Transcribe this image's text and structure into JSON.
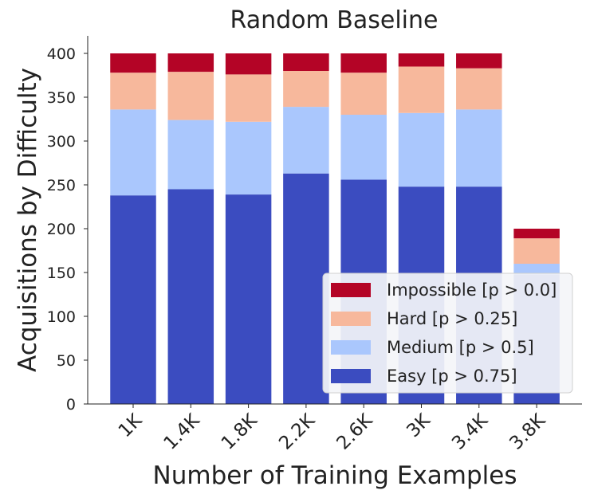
{
  "chart_data": {
    "type": "bar",
    "stacked": true,
    "title": "Random Baseline",
    "xlabel": "Number of Training Examples",
    "ylabel": "Acquisitions by Difficulty",
    "categories": [
      "1K",
      "1.4K",
      "1.8K",
      "2.2K",
      "2.6K",
      "3K",
      "3.4K",
      "3.8K"
    ],
    "ylim": [
      0,
      420
    ],
    "yticks": [
      0,
      50,
      100,
      150,
      200,
      250,
      300,
      350,
      400
    ],
    "legend_position": "lower-right",
    "grid": false,
    "series": [
      {
        "name": "Easy [p > 0.75]",
        "color": "#3b4cc0",
        "values": [
          238,
          245,
          239,
          263,
          256,
          248,
          248,
          148
        ]
      },
      {
        "name": "Medium [p > 0.5]",
        "color": "#aac7fd",
        "values": [
          98,
          79,
          83,
          76,
          74,
          84,
          88,
          12
        ]
      },
      {
        "name": "Hard [p > 0.25]",
        "color": "#f7b89c",
        "values": [
          42,
          55,
          54,
          41,
          48,
          53,
          47,
          29
        ]
      },
      {
        "name": "Impossible [p > 0.0]",
        "color": "#b40426",
        "values": [
          22,
          21,
          24,
          20,
          22,
          15,
          17,
          11
        ]
      }
    ]
  }
}
